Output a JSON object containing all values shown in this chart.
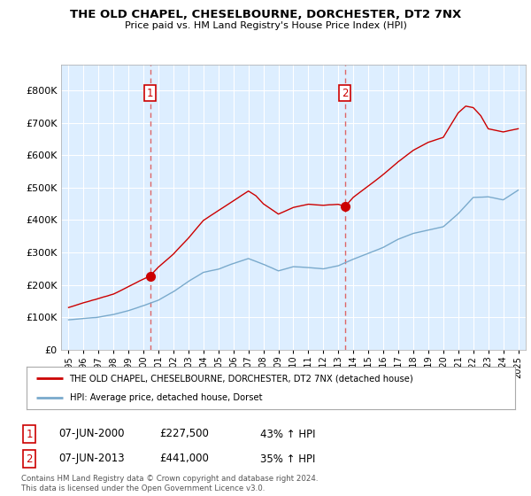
{
  "title": "THE OLD CHAPEL, CHESELBOURNE, DORCHESTER, DT2 7NX",
  "subtitle": "Price paid vs. HM Land Registry's House Price Index (HPI)",
  "legend_line1": "THE OLD CHAPEL, CHESELBOURNE, DORCHESTER, DT2 7NX (detached house)",
  "legend_line2": "HPI: Average price, detached house, Dorset",
  "footer_line1": "Contains HM Land Registry data © Crown copyright and database right 2024.",
  "footer_line2": "This data is licensed under the Open Government Licence v3.0.",
  "sale1_label": "1",
  "sale1_date": "07-JUN-2000",
  "sale1_price": "£227,500",
  "sale1_hpi": "43% ↑ HPI",
  "sale2_label": "2",
  "sale2_date": "07-JUN-2013",
  "sale2_price": "£441,000",
  "sale2_hpi": "35% ↑ HPI",
  "red_color": "#cc0000",
  "blue_color": "#7aaacc",
  "dashed_red": "#dd6666",
  "plot_bg": "#ddeeff",
  "background_color": "#ffffff",
  "grid_color": "#ffffff",
  "ylim": [
    0,
    880000
  ],
  "yticks": [
    0,
    100000,
    200000,
    300000,
    400000,
    500000,
    600000,
    700000,
    800000
  ],
  "ytick_labels": [
    "£0",
    "£100K",
    "£200K",
    "£300K",
    "£400K",
    "£500K",
    "£600K",
    "£700K",
    "£800K"
  ],
  "sale1_x": 2000.44,
  "sale1_y": 227500,
  "sale2_x": 2013.44,
  "sale2_y": 441000,
  "xlim": [
    1994.5,
    2025.5
  ],
  "xticks": [
    1995,
    1996,
    1997,
    1998,
    1999,
    2000,
    2001,
    2002,
    2003,
    2004,
    2005,
    2006,
    2007,
    2008,
    2009,
    2010,
    2011,
    2012,
    2013,
    2014,
    2015,
    2016,
    2017,
    2018,
    2019,
    2020,
    2021,
    2022,
    2023,
    2024,
    2025
  ]
}
